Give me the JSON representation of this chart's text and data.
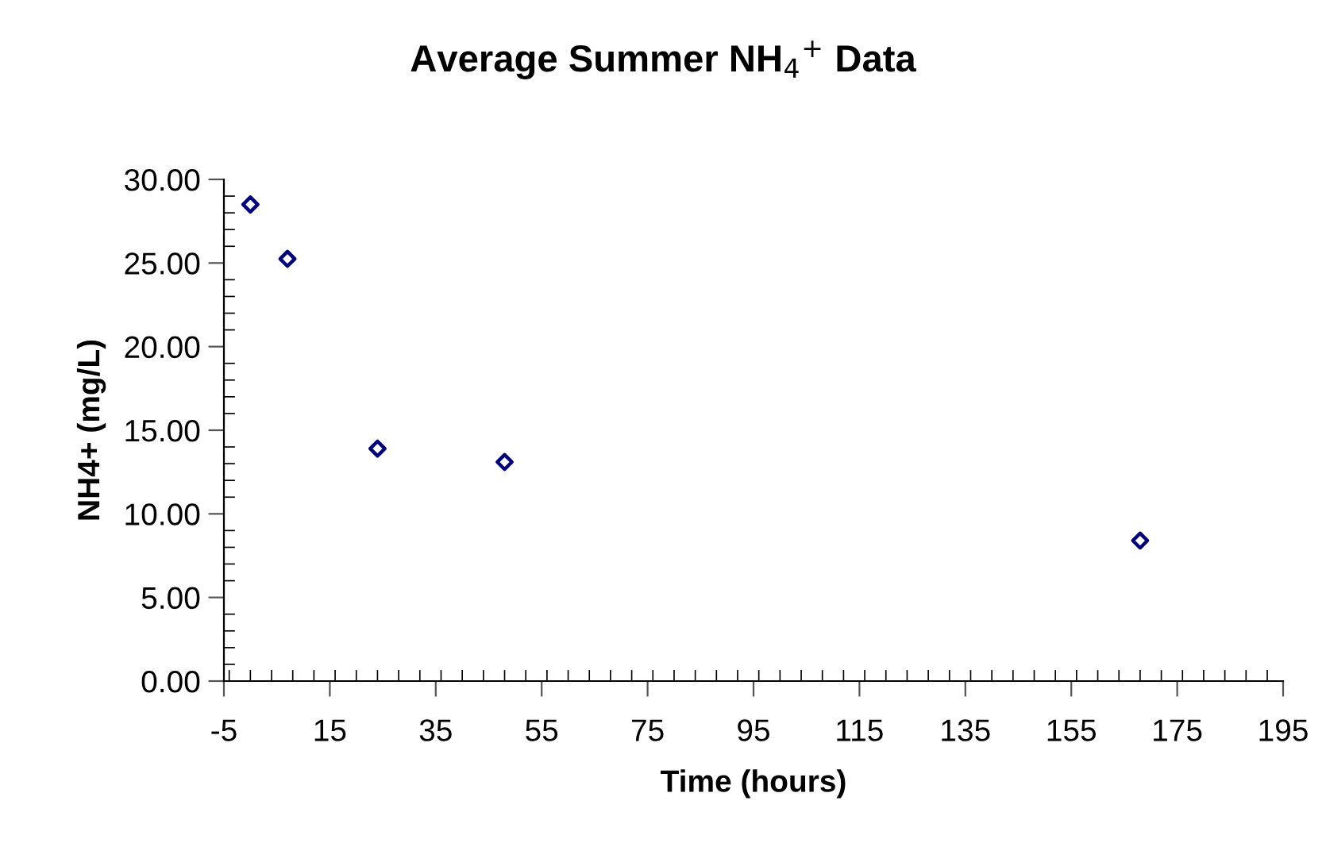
{
  "chart_data": {
    "type": "scatter",
    "title": "Average Summer NH$_{4}$$^{+}$ Data",
    "xlabel": "Time (hours)",
    "ylabel": "NH4+ (mg/L)",
    "x": [
      0,
      7,
      24,
      48,
      168
    ],
    "series": [
      {
        "color": "#000080",
        "values": [
          28.5,
          25.25,
          13.9,
          13.1,
          8.4
        ]
      }
    ],
    "marker": "diamond",
    "grid": false,
    "legend": false,
    "xlim": [
      -5,
      195
    ],
    "xticks": [
      -5,
      15,
      35,
      55,
      75,
      95,
      115,
      135,
      155,
      175,
      195
    ],
    "ylim": [
      0,
      30
    ],
    "yticks": [
      {
        "value": 0,
        "label": "0.00"
      },
      {
        "value": 5,
        "label": "5.00"
      },
      {
        "value": 10,
        "label": "10.00"
      },
      {
        "value": 15,
        "label": "15.00"
      },
      {
        "value": 20,
        "label": "20.00"
      },
      {
        "value": 25,
        "label": "25.00"
      },
      {
        "value": 30,
        "label": "30.00"
      }
    ]
  }
}
